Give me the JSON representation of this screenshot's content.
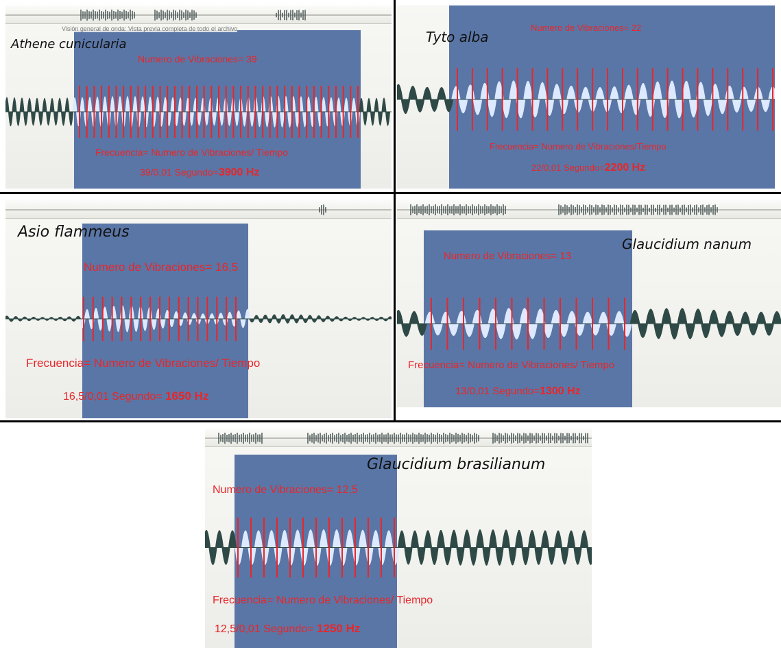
{
  "tooltip": "Visión general de onda: Vista previa completa de todo el archivo",
  "panels": [
    {
      "species": "Athene cunicularia",
      "vibrations_label": "Numero de Vibraciones= 39",
      "formula": "Frecuencia= Numero de Vibraciones/ Tiempo",
      "calc_prefix": "39/0,01 Segundo=",
      "calc_result": "3900 Hz"
    },
    {
      "species": "Tyto alba",
      "vibrations_label": "Numero de Vibraciones= 22",
      "formula": "Frecuencia= Numero de Vibraciones/Tiempo",
      "calc_prefix": "22/0,01 Segundo=",
      "calc_result": "2200 Hz"
    },
    {
      "species": "Asio flammeus",
      "vibrations_label": "Numero de Vibraciones= 16,5",
      "formula": "Frecuencia= Numero de Vibraciones/ Tiempo",
      "calc_prefix": "16,5/0,01 Segundo= ",
      "calc_result": "1650  Hz"
    },
    {
      "species": "Glaucidium nanum",
      "vibrations_label": "Numero de Vibraciones= 13",
      "formula": "Frecuencia= Numero de Vibraciones/ Tiempo",
      "calc_prefix": "13/0,01 Segundo=",
      "calc_result": "1300 Hz"
    },
    {
      "species": "Glaucidium brasilianum",
      "vibrations_label": "Numero de Vibraciones= 12,5",
      "formula": "Frecuencia= Numero de Vibraciones/ Tiempo",
      "calc_prefix": "12,5/0,01 Segundo= ",
      "calc_result": "1250  Hz"
    }
  ],
  "colors": {
    "selection": "#5a76a6",
    "wave_dark": "#2f4a46",
    "wave_light": "#dce9ff",
    "marker": "#e8262a",
    "label": "#e8262a"
  }
}
